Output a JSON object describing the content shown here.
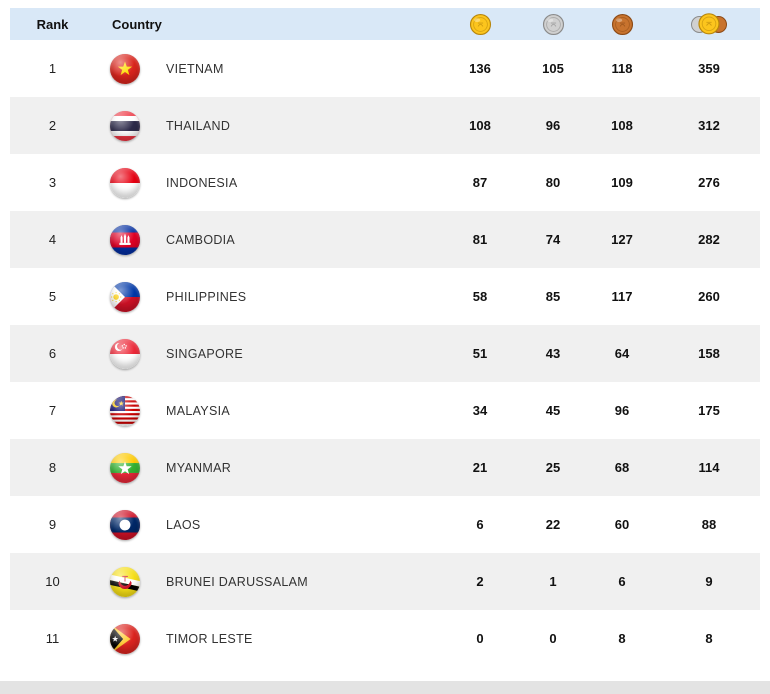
{
  "table": {
    "headers": {
      "rank": "Rank",
      "country": "Country",
      "gold_icon": "gold-medal-icon",
      "silver_icon": "silver-medal-icon",
      "bronze_icon": "bronze-medal-icon",
      "total_icon": "total-medals-icon"
    },
    "rows": [
      {
        "rank": "1",
        "country": "VIETNAM",
        "flag": "vietnam",
        "gold": "136",
        "silver": "105",
        "bronze": "118",
        "total": "359"
      },
      {
        "rank": "2",
        "country": "THAILAND",
        "flag": "thailand",
        "gold": "108",
        "silver": "96",
        "bronze": "108",
        "total": "312"
      },
      {
        "rank": "3",
        "country": "INDONESIA",
        "flag": "indonesia",
        "gold": "87",
        "silver": "80",
        "bronze": "109",
        "total": "276"
      },
      {
        "rank": "4",
        "country": "CAMBODIA",
        "flag": "cambodia",
        "gold": "81",
        "silver": "74",
        "bronze": "127",
        "total": "282"
      },
      {
        "rank": "5",
        "country": "PHILIPPINES",
        "flag": "philippines",
        "gold": "58",
        "silver": "85",
        "bronze": "117",
        "total": "260"
      },
      {
        "rank": "6",
        "country": "SINGAPORE",
        "flag": "singapore",
        "gold": "51",
        "silver": "43",
        "bronze": "64",
        "total": "158"
      },
      {
        "rank": "7",
        "country": "MALAYSIA",
        "flag": "malaysia",
        "gold": "34",
        "silver": "45",
        "bronze": "96",
        "total": "175"
      },
      {
        "rank": "8",
        "country": "MYANMAR",
        "flag": "myanmar",
        "gold": "21",
        "silver": "25",
        "bronze": "68",
        "total": "114"
      },
      {
        "rank": "9",
        "country": "LAOS",
        "flag": "laos",
        "gold": "6",
        "silver": "22",
        "bronze": "60",
        "total": "88"
      },
      {
        "rank": "10",
        "country": "BRUNEI DARUSSALAM",
        "flag": "brunei",
        "gold": "2",
        "silver": "1",
        "bronze": "6",
        "total": "9"
      },
      {
        "rank": "11",
        "country": "TIMOR LESTE",
        "flag": "timor_leste",
        "gold": "0",
        "silver": "0",
        "bronze": "8",
        "total": "8"
      }
    ]
  },
  "colors": {
    "header_bg": "#d9e8f7",
    "stripe_bg": "#f0f0f0",
    "bottom_bar_bg": "#e3e3e3",
    "gold": "#fcc51d",
    "gold_dark": "#b8860b",
    "silver": "#d0d0d0",
    "silver_dark": "#8a8a8a",
    "bronze": "#c8732e",
    "bronze_dark": "#8c4a16"
  }
}
